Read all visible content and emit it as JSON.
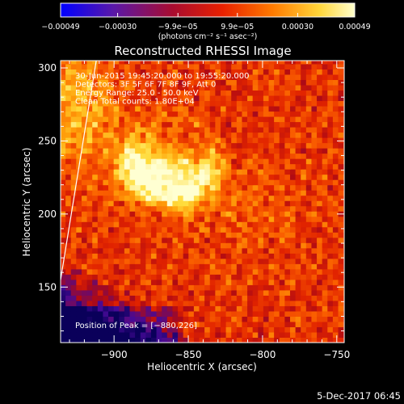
{
  "chart_data": {
    "type": "heatmap",
    "title": "Reconstructed RHESSI Image",
    "xlabel": "Heliocentric X (arcsec)",
    "ylabel": "Heliocentric Y (arcsec)",
    "xlim": [
      -936,
      -745
    ],
    "ylim": [
      112,
      305
    ],
    "x_ticks": [
      -900,
      -850,
      -800,
      -750
    ],
    "x_tick_labels": [
      "−900",
      "−850",
      "−800",
      "−750"
    ],
    "y_ticks": [
      150,
      200,
      250,
      300
    ],
    "y_tick_labels": [
      "150",
      "200",
      "250",
      "300"
    ],
    "colorbar": {
      "range": [
        -0.00049,
        0.00049
      ],
      "ticks": [
        -0.00049,
        -0.0003,
        -9.9e-05,
        9.9e-05,
        0.0003,
        0.00049
      ],
      "tick_labels": [
        "−0.00049",
        "−0.00030",
        "−9.9e−05",
        "9.9e−05",
        "0.00030",
        "0.00049"
      ],
      "units": "(photons cm⁻² s⁻¹ asec⁻²)",
      "colormap": "blue-purple-red-orange-yellow-white"
    },
    "annotations": [
      "30-Jun-2015 19:45:20.000 to 19:55:20.000",
      "Detectors: 3F 5F 6F 7F 8F 9F, Att 0",
      "Energy Range: 25.0 - 50.0 keV",
      "Clean      Total counts: 1.80E+04"
    ],
    "peak_label": "Position of Peak = [−880,226]",
    "peak": [
      -880,
      226
    ],
    "sources": [
      {
        "x": -880,
        "y": 228,
        "amp": 1.0
      },
      {
        "x": -855,
        "y": 222,
        "amp": 0.85
      }
    ],
    "limb_line": {
      "x": [
        -936,
        -912
      ],
      "y": [
        155,
        305
      ]
    },
    "footer_date": "5-Dec-2017 06:45"
  }
}
